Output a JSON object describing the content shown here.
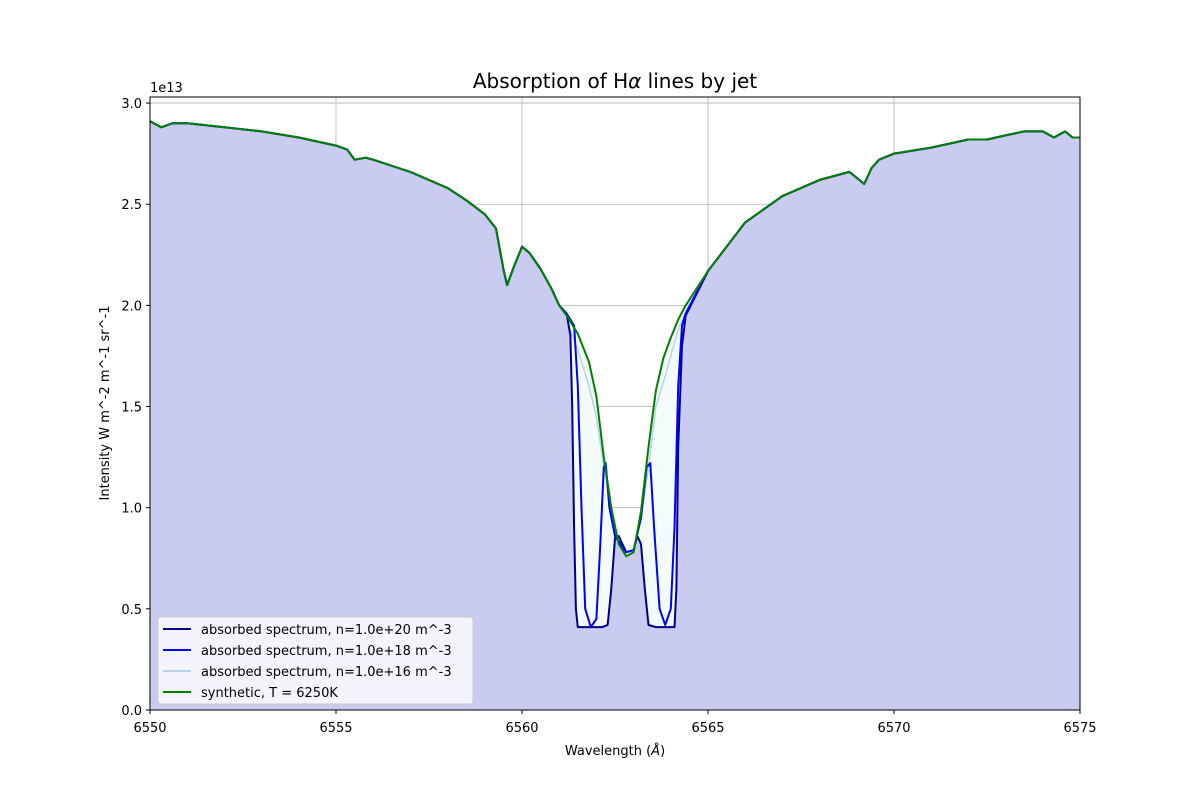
{
  "chart_data": {
    "type": "line",
    "title": "Absorption of Hα lines by jet",
    "xlabel": "Wavelength (Å)",
    "ylabel": "Intensity W m^-2 m^-1 sr^-1",
    "y_offset_text": "1e13",
    "xlim": [
      6550,
      6575
    ],
    "ylim": [
      0,
      3.03
    ],
    "y_scale_factor": 10000000000000.0,
    "grid": true,
    "legend_position": "lower-left",
    "x_ticks": [
      6550,
      6555,
      6560,
      6565,
      6570,
      6575
    ],
    "x_tick_labels": [
      "6550",
      "6555",
      "6560",
      "6565",
      "6570",
      "6575"
    ],
    "y_ticks": [
      0,
      0.5,
      1.0,
      1.5,
      2.0,
      2.5,
      3.0
    ],
    "y_tick_labels": [
      "0.0",
      "0.5",
      "1.0",
      "1.5",
      "2.0",
      "2.5",
      "3.0"
    ],
    "fill_color": "#c9cbf1",
    "series": [
      {
        "name": "absorbed spectrum, n=1.0e+20 m^-3",
        "color": "#00008b",
        "x": [
          6550,
          6550.3,
          6550.6,
          6551,
          6552,
          6553,
          6554,
          6555,
          6555.3,
          6555.5,
          6555.8,
          6556,
          6557,
          6558,
          6558.5,
          6559,
          6559.3,
          6559.5,
          6559.6,
          6559.8,
          6560,
          6560.2,
          6560.5,
          6560.8,
          6561,
          6561.2,
          6561.3,
          6561.35,
          6561.4,
          6561.45,
          6561.5,
          6561.6,
          6561.9,
          6562.0,
          6562.15,
          6562.3,
          6562.4,
          6562.5,
          6562.6,
          6562.8,
          6563.0,
          6563.1,
          6563.2,
          6563.3,
          6563.4,
          6563.6,
          6563.9,
          6564.1,
          6564.15,
          6564.2,
          6564.3,
          6564.4,
          6565,
          6566,
          6567,
          6568,
          6568.8,
          6569,
          6569.2,
          6569.4,
          6569.6,
          6570,
          6571,
          6572,
          6572.5,
          6573,
          6573.5,
          6574,
          6574.3,
          6574.6,
          6574.8,
          6575
        ],
        "y": [
          2.91,
          2.88,
          2.9,
          2.9,
          2.88,
          2.86,
          2.83,
          2.79,
          2.77,
          2.72,
          2.73,
          2.72,
          2.66,
          2.58,
          2.52,
          2.45,
          2.38,
          2.18,
          2.1,
          2.2,
          2.29,
          2.26,
          2.18,
          2.08,
          2.0,
          1.96,
          1.85,
          1.5,
          0.9,
          0.5,
          0.41,
          0.41,
          0.41,
          0.41,
          0.41,
          0.42,
          0.6,
          0.85,
          0.86,
          0.78,
          0.79,
          0.86,
          0.82,
          0.6,
          0.42,
          0.41,
          0.41,
          0.41,
          0.6,
          1.3,
          1.8,
          1.95,
          2.17,
          2.41,
          2.54,
          2.62,
          2.66,
          2.63,
          2.6,
          2.68,
          2.72,
          2.75,
          2.78,
          2.82,
          2.82,
          2.84,
          2.86,
          2.86,
          2.83,
          2.86,
          2.83,
          2.83
        ]
      },
      {
        "name": "absorbed spectrum, n=1.0e+18 m^-3",
        "color": "#0000ff",
        "x": [
          6550,
          6550.3,
          6550.6,
          6551,
          6552,
          6553,
          6554,
          6555,
          6555.3,
          6555.5,
          6555.8,
          6556,
          6557,
          6558,
          6558.5,
          6559,
          6559.3,
          6559.5,
          6559.6,
          6559.8,
          6560,
          6560.2,
          6560.5,
          6560.8,
          6561,
          6561.2,
          6561.4,
          6561.5,
          6561.6,
          6561.7,
          6561.85,
          6562.0,
          6562.1,
          6562.2,
          6562.25,
          6562.35,
          6562.5,
          6562.8,
          6563.0,
          6563.2,
          6563.35,
          6563.45,
          6563.55,
          6563.7,
          6563.85,
          6564.0,
          6564.1,
          6564.2,
          6564.3,
          6564.4,
          6565,
          6566,
          6567,
          6568,
          6568.8,
          6569,
          6569.2,
          6569.4,
          6569.6,
          6570,
          6571,
          6572,
          6572.5,
          6573,
          6573.5,
          6574,
          6574.3,
          6574.6,
          6574.8,
          6575
        ],
        "y": [
          2.91,
          2.88,
          2.9,
          2.9,
          2.88,
          2.86,
          2.83,
          2.79,
          2.77,
          2.72,
          2.73,
          2.72,
          2.66,
          2.58,
          2.52,
          2.45,
          2.38,
          2.18,
          2.1,
          2.2,
          2.29,
          2.26,
          2.18,
          2.08,
          2.0,
          1.96,
          1.9,
          1.6,
          1.0,
          0.5,
          0.41,
          0.45,
          0.8,
          1.2,
          1.22,
          1.0,
          0.86,
          0.78,
          0.79,
          0.95,
          1.2,
          1.22,
          0.9,
          0.5,
          0.42,
          0.5,
          0.9,
          1.6,
          1.9,
          1.96,
          2.17,
          2.41,
          2.54,
          2.62,
          2.66,
          2.63,
          2.6,
          2.68,
          2.72,
          2.75,
          2.78,
          2.82,
          2.82,
          2.84,
          2.86,
          2.86,
          2.83,
          2.86,
          2.83,
          2.83
        ]
      },
      {
        "name": "absorbed spectrum, n=1.0e+16 m^-3",
        "color": "#b7d4ea",
        "x": [
          6550,
          6550.3,
          6550.6,
          6551,
          6552,
          6553,
          6554,
          6555,
          6555.3,
          6555.5,
          6555.8,
          6556,
          6557,
          6558,
          6558.5,
          6559,
          6559.3,
          6559.5,
          6559.6,
          6559.8,
          6560,
          6560.2,
          6560.5,
          6560.8,
          6561,
          6561.2,
          6561.5,
          6561.8,
          6562.0,
          6562.2,
          6562.4,
          6562.6,
          6562.8,
          6563.0,
          6563.2,
          6563.4,
          6563.6,
          6563.8,
          6564.0,
          6564.2,
          6564.4,
          6565,
          6566,
          6567,
          6568,
          6568.8,
          6569,
          6569.2,
          6569.4,
          6569.6,
          6570,
          6571,
          6572,
          6572.5,
          6573,
          6573.5,
          6574,
          6574.3,
          6574.6,
          6574.8,
          6575
        ],
        "y": [
          2.91,
          2.88,
          2.9,
          2.9,
          2.88,
          2.86,
          2.83,
          2.79,
          2.77,
          2.72,
          2.73,
          2.72,
          2.66,
          2.58,
          2.52,
          2.45,
          2.38,
          2.18,
          2.1,
          2.2,
          2.29,
          2.26,
          2.18,
          2.08,
          2.0,
          1.93,
          1.78,
          1.6,
          1.45,
          1.2,
          1.0,
          0.82,
          0.76,
          0.78,
          0.95,
          1.2,
          1.5,
          1.62,
          1.75,
          1.88,
          1.97,
          2.17,
          2.41,
          2.54,
          2.62,
          2.66,
          2.63,
          2.6,
          2.68,
          2.72,
          2.75,
          2.78,
          2.82,
          2.82,
          2.84,
          2.86,
          2.86,
          2.83,
          2.86,
          2.83,
          2.83
        ]
      },
      {
        "name": "synthetic, T = 6250K",
        "color": "#008000",
        "x": [
          6550,
          6550.3,
          6550.6,
          6551,
          6552,
          6553,
          6554,
          6555,
          6555.3,
          6555.5,
          6555.8,
          6556,
          6557,
          6558,
          6558.5,
          6559,
          6559.3,
          6559.5,
          6559.6,
          6559.8,
          6560,
          6560.2,
          6560.5,
          6560.8,
          6561,
          6561.2,
          6561.5,
          6561.8,
          6562.0,
          6562.2,
          6562.4,
          6562.6,
          6562.8,
          6563.0,
          6563.2,
          6563.4,
          6563.6,
          6563.8,
          6564.0,
          6564.2,
          6564.4,
          6565,
          6566,
          6567,
          6568,
          6568.8,
          6569,
          6569.2,
          6569.4,
          6569.6,
          6570,
          6571,
          6572,
          6572.5,
          6573,
          6573.5,
          6574,
          6574.3,
          6574.6,
          6574.8,
          6575
        ],
        "y": [
          2.91,
          2.88,
          2.9,
          2.9,
          2.88,
          2.86,
          2.83,
          2.79,
          2.77,
          2.72,
          2.73,
          2.72,
          2.66,
          2.58,
          2.52,
          2.45,
          2.38,
          2.18,
          2.1,
          2.2,
          2.29,
          2.26,
          2.18,
          2.08,
          2.0,
          1.95,
          1.86,
          1.72,
          1.55,
          1.25,
          1.0,
          0.82,
          0.76,
          0.78,
          0.98,
          1.3,
          1.58,
          1.74,
          1.84,
          1.93,
          2.0,
          2.17,
          2.41,
          2.54,
          2.62,
          2.66,
          2.63,
          2.6,
          2.68,
          2.72,
          2.75,
          2.78,
          2.82,
          2.82,
          2.84,
          2.86,
          2.86,
          2.83,
          2.86,
          2.83,
          2.83
        ]
      }
    ]
  }
}
